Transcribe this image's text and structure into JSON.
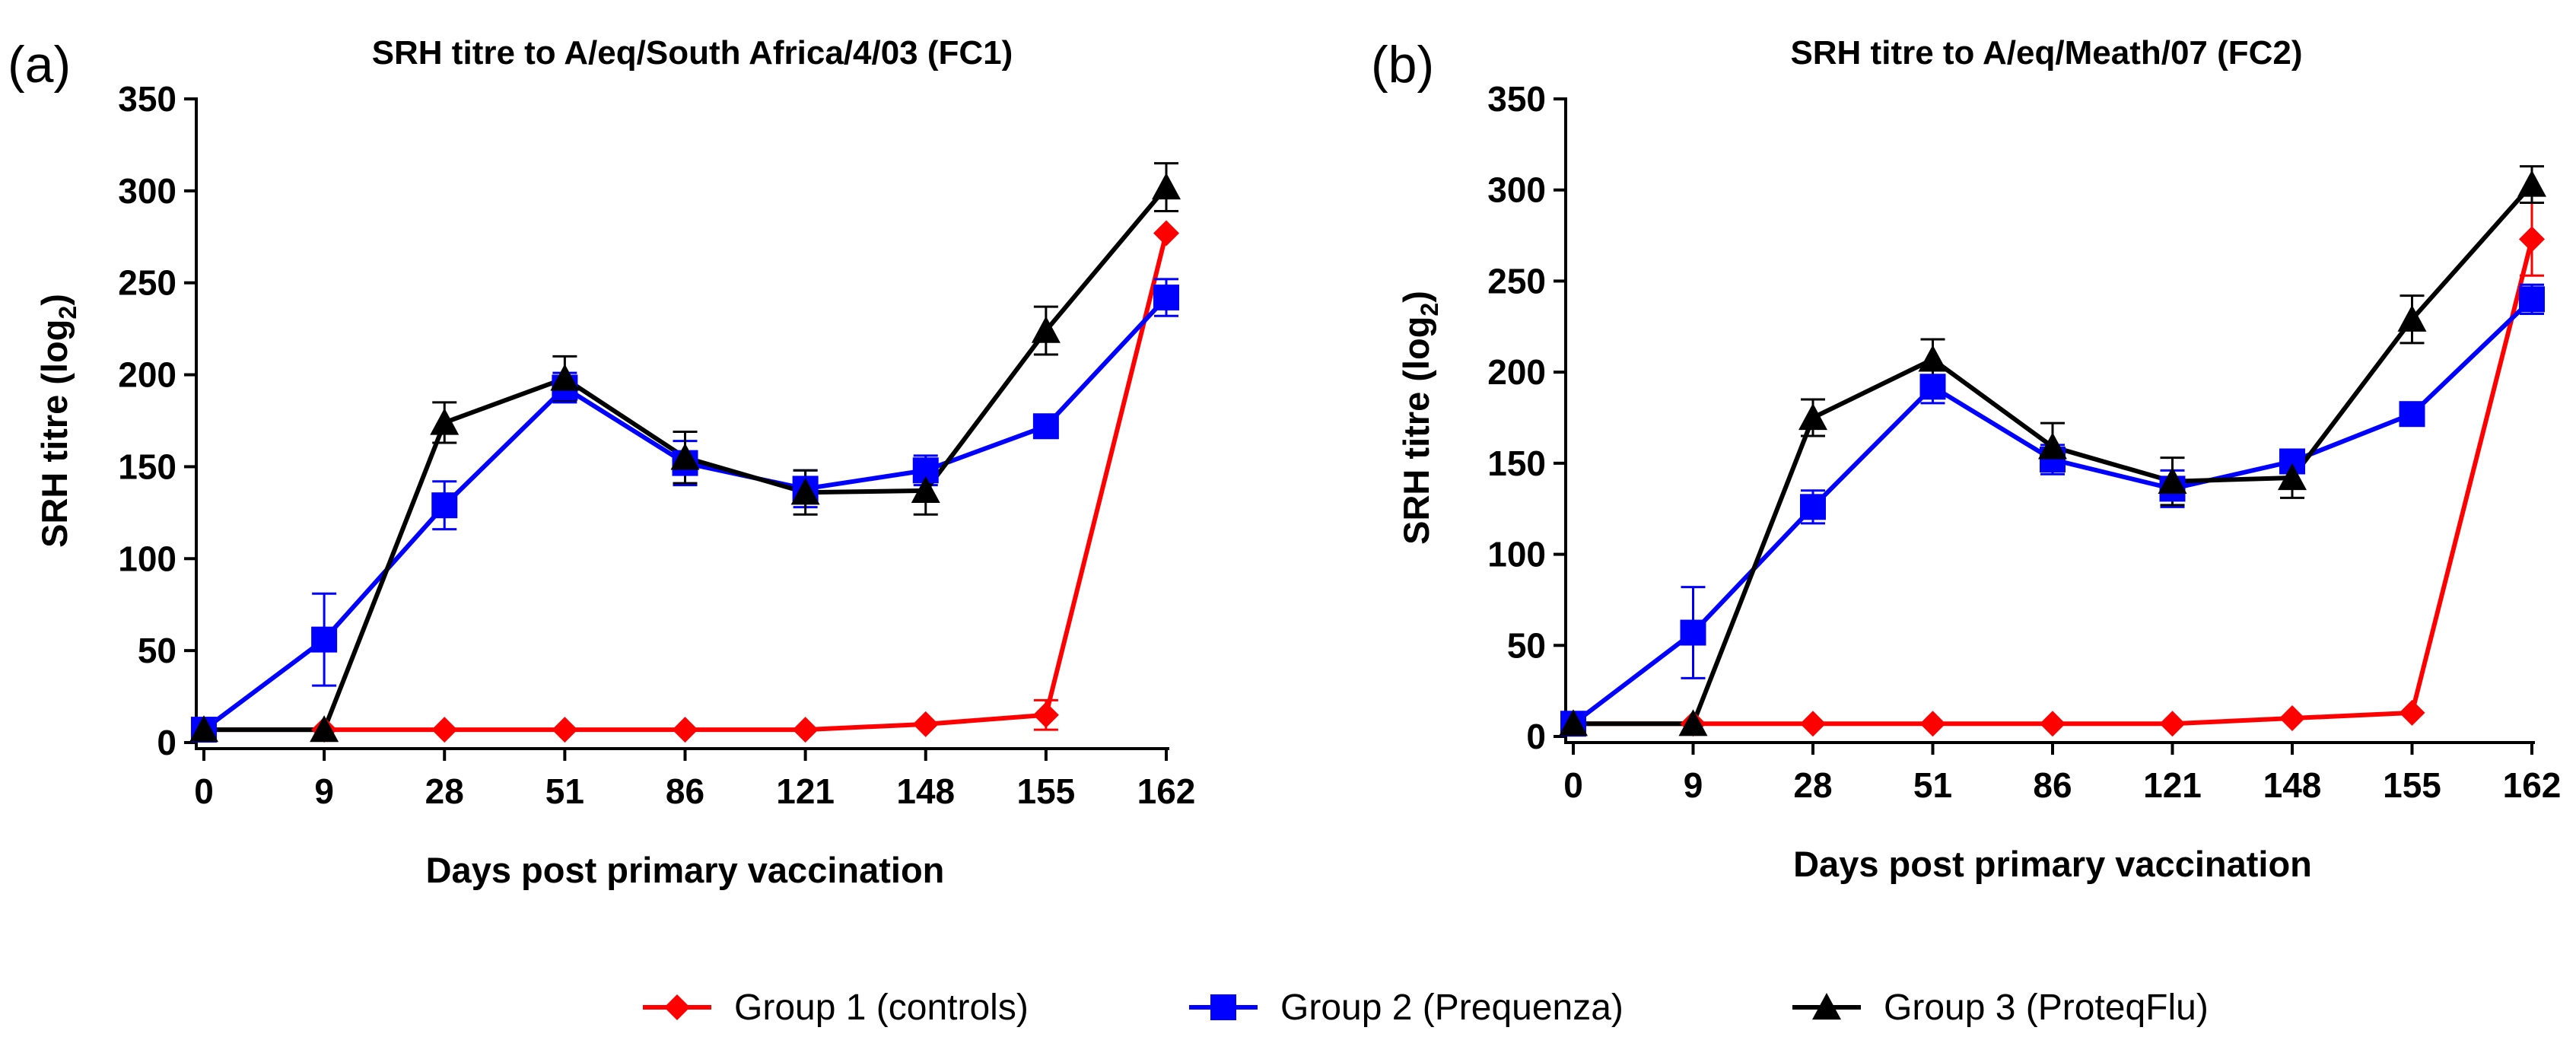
{
  "chart_data": [
    {
      "type": "line",
      "panel_label": "(a)",
      "title": "SRH titre to A/eq/South Africa/4/03 (FC1)",
      "xlabel": "Days post primary vaccination",
      "ylabel_main": "SRH titre (log",
      "ylabel_sub": "2",
      "ylabel_end": ")",
      "categories": [
        "0",
        "9",
        "28",
        "51",
        "86",
        "121",
        "148",
        "155",
        "162"
      ],
      "ylim": [
        0,
        350
      ],
      "yticks": [
        "0",
        "50",
        "100",
        "150",
        "200",
        "250",
        "300",
        "350"
      ],
      "series": [
        {
          "name": "Group 1 (controls)",
          "color": "#ff0000",
          "marker": "diamond",
          "values": [
            7,
            7,
            7,
            7,
            7,
            7,
            10,
            15,
            277
          ],
          "errors": [
            0,
            0,
            0,
            0,
            0,
            0,
            0,
            8,
            0
          ]
        },
        {
          "name": "Group 2 (Prequenza)",
          "color": "#0000ff",
          "marker": "square",
          "values": [
            7,
            56,
            129,
            193,
            152,
            138,
            148,
            172,
            242
          ],
          "errors": [
            0,
            25,
            13,
            8,
            12,
            10,
            8,
            6,
            10
          ]
        },
        {
          "name": "Group 3 (ProteqFlu)",
          "color": "#000000",
          "marker": "triangle",
          "values": [
            7,
            7,
            174,
            198,
            155,
            136,
            137,
            224,
            302
          ],
          "errors": [
            0,
            0,
            11,
            12,
            14,
            12,
            13,
            13,
            13
          ]
        }
      ]
    },
    {
      "type": "line",
      "panel_label": "(b)",
      "title": "SRH titre to A/eq/Meath/07 (FC2)",
      "xlabel": "Days post primary vaccination",
      "ylabel_main": "SRH titre (log",
      "ylabel_sub": "2",
      "ylabel_end": ")",
      "categories": [
        "0",
        "9",
        "28",
        "51",
        "86",
        "121",
        "148",
        "155",
        "162"
      ],
      "ylim": [
        0,
        350
      ],
      "yticks": [
        "0",
        "50",
        "100",
        "150",
        "200",
        "250",
        "300",
        "350"
      ],
      "series": [
        {
          "name": "Group 1 (controls)",
          "color": "#ff0000",
          "marker": "diamond",
          "values": [
            7,
            7,
            7,
            7,
            7,
            7,
            10,
            13,
            273
          ],
          "errors": [
            0,
            0,
            0,
            0,
            0,
            0,
            0,
            0,
            20
          ]
        },
        {
          "name": "Group 2 (Prequenza)",
          "color": "#0000ff",
          "marker": "square",
          "values": [
            7,
            57,
            126,
            192,
            152,
            136,
            151,
            177,
            240
          ],
          "errors": [
            0,
            25,
            9,
            9,
            8,
            10,
            6,
            5,
            8
          ]
        },
        {
          "name": "Group 3 (ProteqFlu)",
          "color": "#000000",
          "marker": "triangle",
          "values": [
            7,
            7,
            175,
            207,
            159,
            140,
            142,
            229,
            303
          ],
          "errors": [
            0,
            0,
            10,
            11,
            13,
            13,
            11,
            13,
            10
          ]
        }
      ]
    }
  ],
  "legend": {
    "position": "bottom-center",
    "items": [
      {
        "label": "Group 1 (controls)",
        "color": "#ff0000",
        "marker": "diamond"
      },
      {
        "label": "Group 2 (Prequenza)",
        "color": "#0000ff",
        "marker": "square"
      },
      {
        "label": "Group 3 (ProteqFlu)",
        "color": "#000000",
        "marker": "triangle"
      }
    ]
  }
}
